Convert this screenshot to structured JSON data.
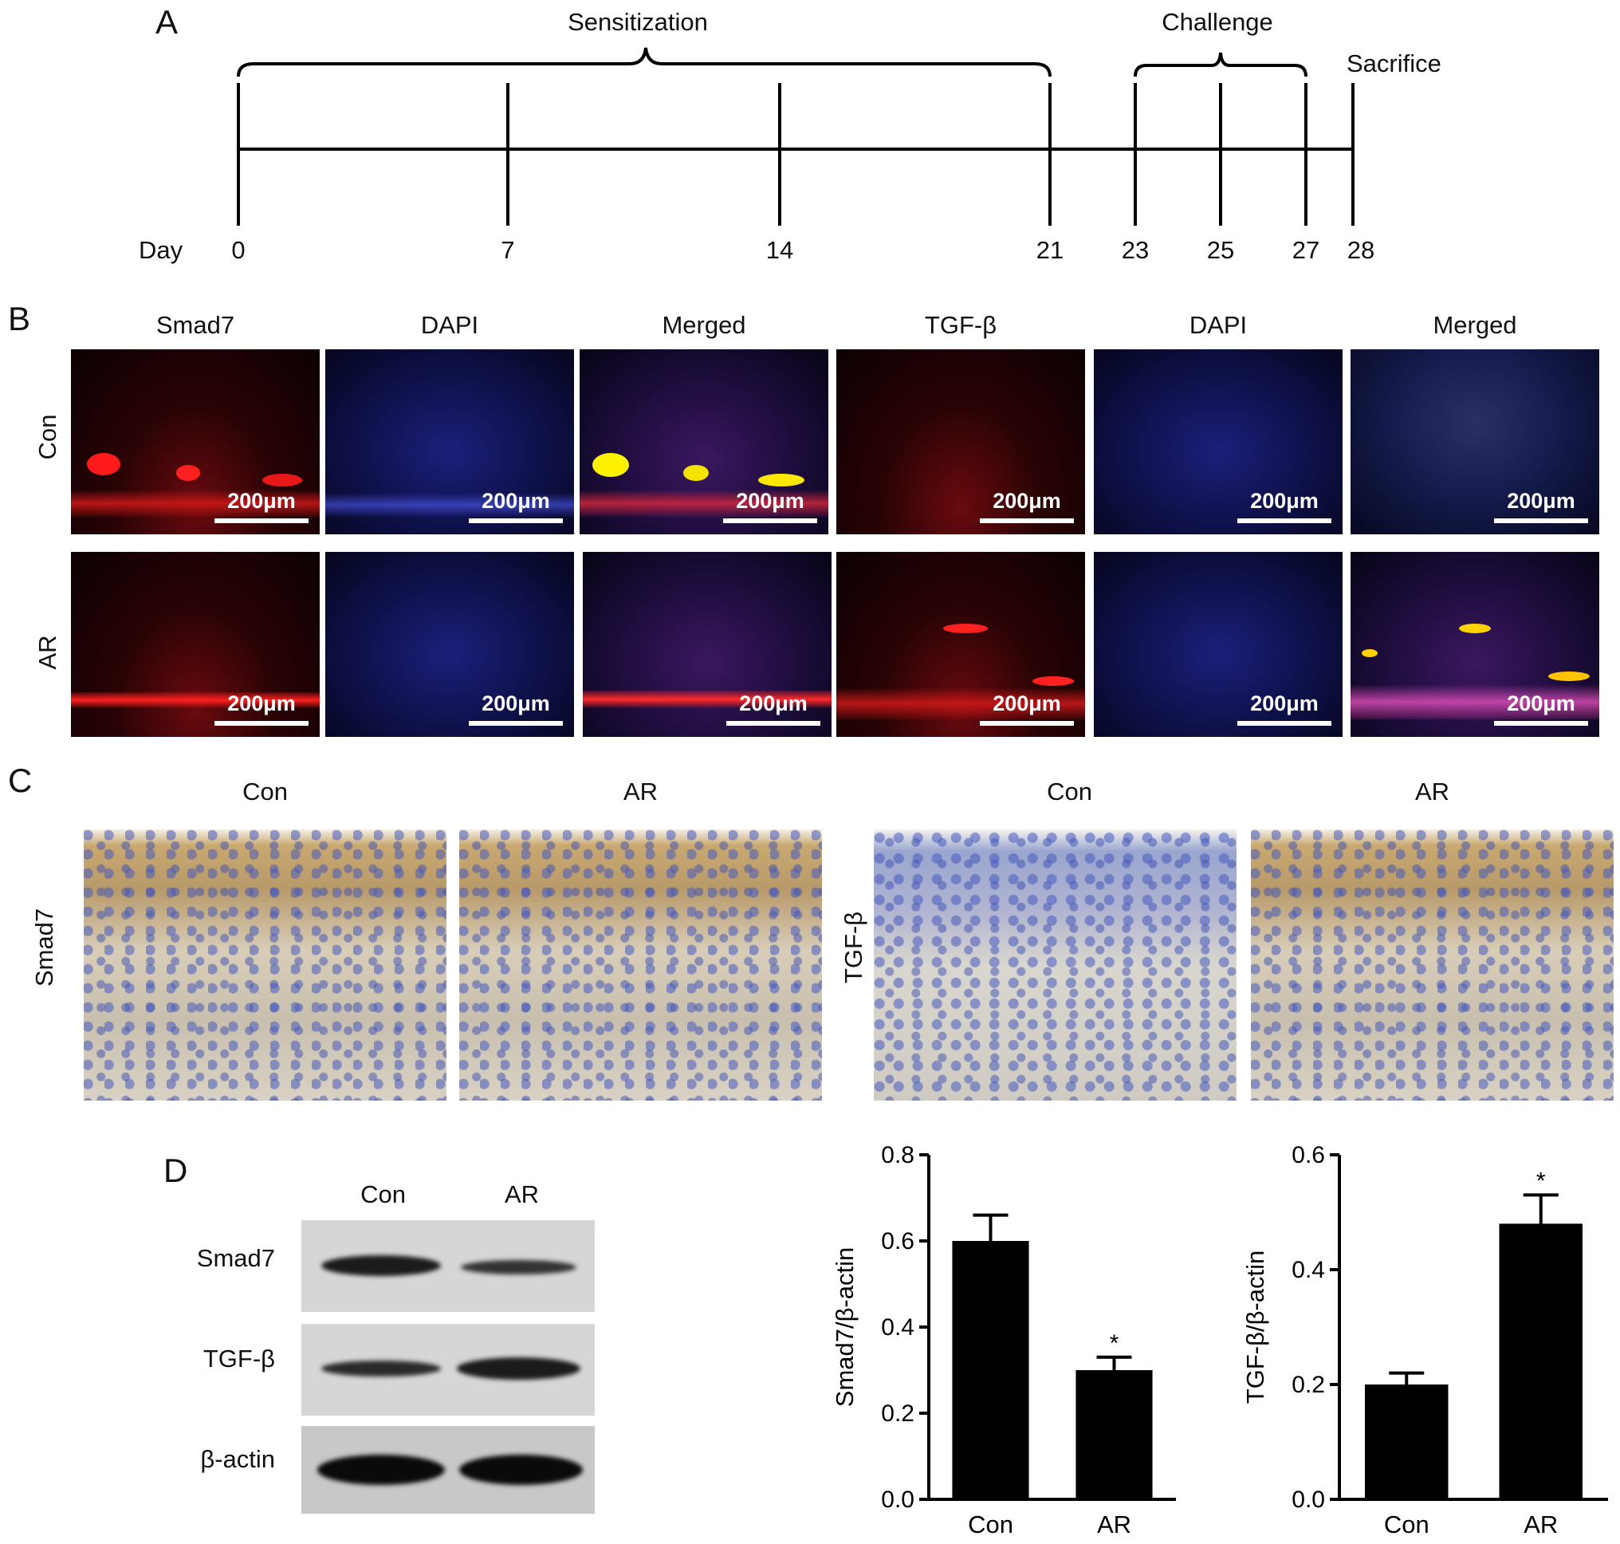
{
  "panel_labels": {
    "a": "A",
    "b": "B",
    "c": "C",
    "d": "D"
  },
  "timeline": {
    "phase_sensitization": "Sensitization",
    "phase_challenge": "Challenge",
    "sacrifice": "Sacrifice",
    "day_label": "Day",
    "days": [
      "0",
      "7",
      "14",
      "21",
      "23",
      "25",
      "27",
      "28"
    ]
  },
  "fluorescence": {
    "column_headers": [
      "Smad7",
      "DAPI",
      "Merged",
      "TGF-β",
      "DAPI",
      "Merged"
    ],
    "row_labels": [
      "Con",
      "AR"
    ],
    "scale_bar": "200μm"
  },
  "ihc": {
    "column_headers": [
      "Con",
      "AR",
      "Con",
      "AR"
    ],
    "row_labels": [
      "Smad7",
      "TGF-β"
    ]
  },
  "western_blot": {
    "lane_labels": [
      "Con",
      "AR"
    ],
    "row_labels": [
      "Smad7",
      "TGF-β",
      "β-actin"
    ]
  },
  "chart_data": [
    {
      "type": "bar",
      "categories": [
        "Con",
        "AR"
      ],
      "values": [
        0.6,
        0.3
      ],
      "errors": [
        0.06,
        0.03
      ],
      "significance": [
        "",
        "*"
      ],
      "ylabel": "Smad7/β-actin",
      "ylim": [
        0,
        0.8
      ],
      "yticks": [
        "0.0",
        "0.2",
        "0.4",
        "0.6",
        "0.8"
      ],
      "bar_color": "#000000"
    },
    {
      "type": "bar",
      "categories": [
        "Con",
        "AR"
      ],
      "values": [
        0.2,
        0.48
      ],
      "errors": [
        0.02,
        0.05
      ],
      "significance": [
        "",
        "*"
      ],
      "ylabel": "TGF-β/β-actin",
      "ylim": [
        0,
        0.6
      ],
      "yticks": [
        "0.0",
        "0.2",
        "0.4",
        "0.6"
      ],
      "bar_color": "#000000"
    }
  ]
}
